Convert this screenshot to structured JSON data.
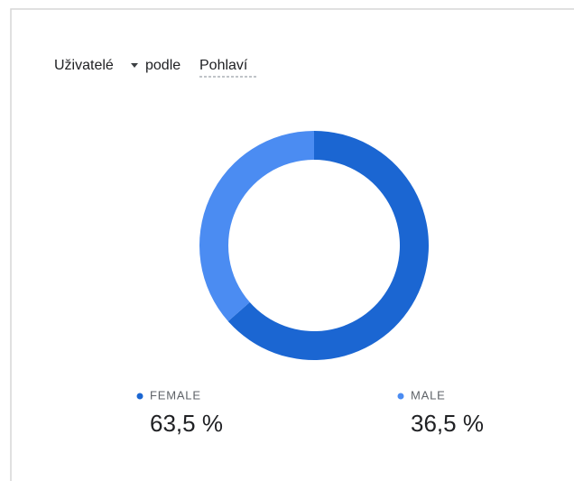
{
  "chart_data": {
    "type": "donut",
    "title": {
      "metric": "Uživatelé",
      "connector": "podle",
      "dimension": "Pohlaví"
    },
    "categories": [
      "FEMALE",
      "MALE"
    ],
    "values": [
      63.5,
      36.5
    ],
    "value_labels": [
      "63,5 %",
      "36,5 %"
    ],
    "colors": [
      "#1b66d2",
      "#4b8cf2"
    ]
  }
}
